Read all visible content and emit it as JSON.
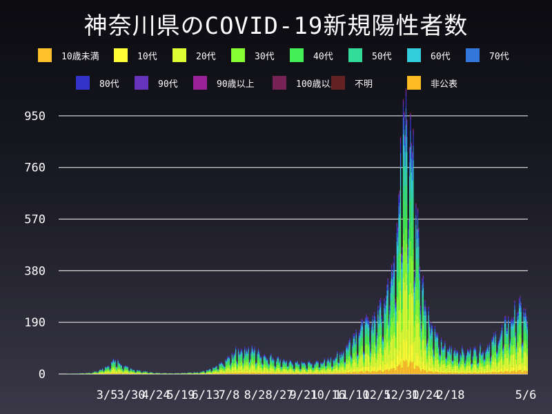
{
  "chart_data": {
    "type": "bar",
    "stacked": true,
    "title": "神奈川県のCOVID-19新規陽性者数",
    "xlabel": "",
    "ylabel": "",
    "ylim": [
      0,
      970
    ],
    "yticks": [
      0,
      190,
      380,
      570,
      760,
      950
    ],
    "xticks": [
      "3/5",
      "3/30",
      "4/24",
      "5/19",
      "6/13",
      "7/8",
      "8/2",
      "8/27",
      "9/21",
      "10/16",
      "11/10",
      "12/5",
      "12/30",
      "1/24",
      "2/18",
      "5/6"
    ],
    "grid": true,
    "legend_position": "top",
    "series": [
      {
        "name": "10歳未満",
        "color": "#ffc02a",
        "share": 0.05
      },
      {
        "name": "10代",
        "color": "#ffff33",
        "share": 0.08
      },
      {
        "name": "20代",
        "color": "#ddff33",
        "share": 0.22
      },
      {
        "name": "30代",
        "color": "#88ff33",
        "share": 0.16
      },
      {
        "name": "40代",
        "color": "#44ee55",
        "share": 0.15
      },
      {
        "name": "50代",
        "color": "#33dd99",
        "share": 0.13
      },
      {
        "name": "60代",
        "color": "#33ccdd",
        "share": 0.08
      },
      {
        "name": "70代",
        "color": "#3377dd",
        "share": 0.06
      },
      {
        "name": "80代",
        "color": "#3333cc",
        "share": 0.04
      },
      {
        "name": "90代",
        "color": "#6633bb",
        "share": 0.02
      },
      {
        "name": "90歳以上",
        "color": "#992299",
        "share": 0.005
      },
      {
        "name": "100歳以上",
        "color": "#772255",
        "share": 0.002
      },
      {
        "name": "不明",
        "color": "#662222",
        "share": 0.003
      },
      {
        "name": "非公表",
        "color": "#ffbb22",
        "share": 0.0
      }
    ],
    "daily_totals_profile": [
      [
        0,
        0
      ],
      [
        20,
        2
      ],
      [
        35,
        5
      ],
      [
        45,
        15
      ],
      [
        55,
        35
      ],
      [
        62,
        55
      ],
      [
        68,
        40
      ],
      [
        75,
        25
      ],
      [
        85,
        15
      ],
      [
        95,
        10
      ],
      [
        105,
        5
      ],
      [
        125,
        3
      ],
      [
        140,
        5
      ],
      [
        155,
        8
      ],
      [
        165,
        15
      ],
      [
        175,
        30
      ],
      [
        185,
        55
      ],
      [
        195,
        85
      ],
      [
        205,
        100
      ],
      [
        215,
        90
      ],
      [
        225,
        75
      ],
      [
        235,
        65
      ],
      [
        245,
        55
      ],
      [
        255,
        45
      ],
      [
        270,
        40
      ],
      [
        285,
        45
      ],
      [
        300,
        55
      ],
      [
        315,
        90
      ],
      [
        325,
        150
      ],
      [
        335,
        175
      ],
      [
        345,
        200
      ],
      [
        355,
        260
      ],
      [
        362,
        330
      ],
      [
        368,
        450
      ],
      [
        373,
        600
      ],
      [
        378,
        820
      ],
      [
        383,
        960
      ],
      [
        388,
        920
      ],
      [
        393,
        700
      ],
      [
        398,
        450
      ],
      [
        403,
        300
      ],
      [
        410,
        200
      ],
      [
        420,
        120
      ],
      [
        430,
        95
      ],
      [
        440,
        90
      ],
      [
        450,
        85
      ],
      [
        460,
        90
      ],
      [
        470,
        100
      ],
      [
        480,
        130
      ],
      [
        490,
        170
      ],
      [
        500,
        220
      ],
      [
        507,
        250
      ],
      [
        512,
        230
      ],
      [
        518,
        200
      ]
    ],
    "num_days": 518
  }
}
